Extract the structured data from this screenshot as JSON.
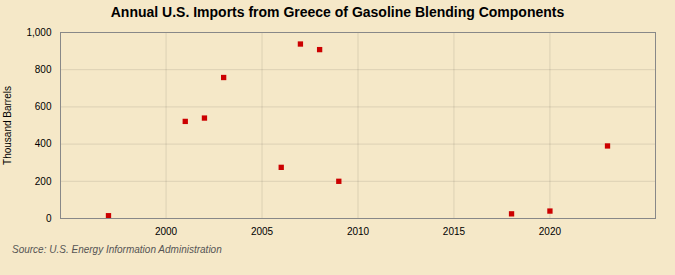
{
  "chart_data": {
    "type": "scatter",
    "title": "Annual U.S. Imports from Greece of Gasoline Blending Components",
    "ylabel": "Thousand Barrels",
    "annotation": "Source: U.S. Energy Information Administration",
    "x": [
      1997,
      2001,
      2002,
      2003,
      2006,
      2007,
      2008,
      2009,
      2018,
      2020,
      2023
    ],
    "values": [
      15,
      522,
      540,
      758,
      275,
      938,
      908,
      200,
      25,
      40,
      390
    ],
    "color": "#cc0000",
    "marker": "square",
    "xlim": [
      1994.5,
      2025.5
    ],
    "ylim": [
      0,
      1000
    ],
    "xticks": [
      2000,
      2005,
      2010,
      2015,
      2020
    ],
    "yticks": [
      0,
      200,
      400,
      600,
      800,
      {
        "value": 1000,
        "label": "1,000"
      }
    ],
    "grid": true
  }
}
